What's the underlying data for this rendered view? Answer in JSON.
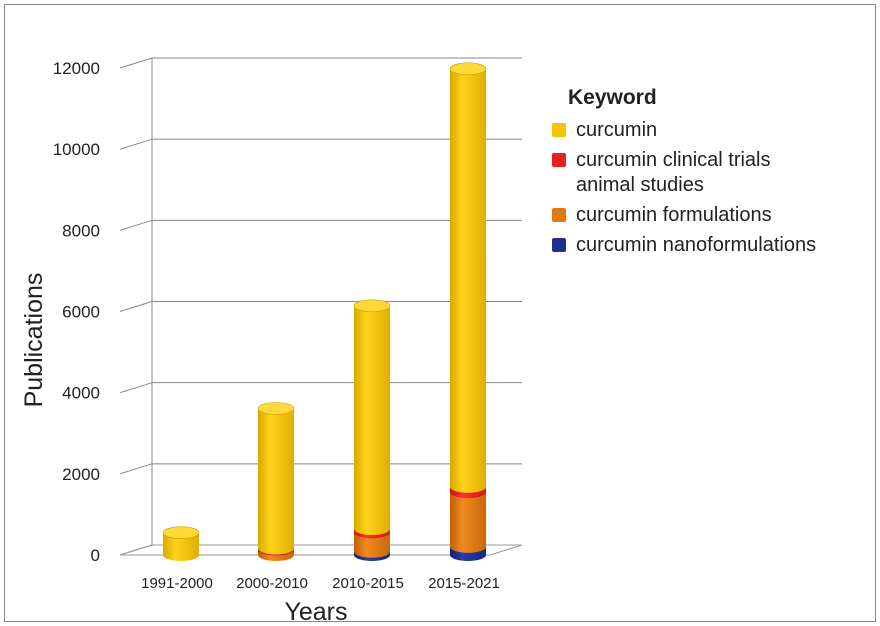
{
  "chart_data": {
    "type": "bar",
    "title": "",
    "xlabel": "Years",
    "ylabel": "Publications",
    "categories": [
      "1991-2000",
      "2000-2010",
      "2010-2015",
      "2015-2021"
    ],
    "ylim": [
      0,
      12000
    ],
    "yticks": [
      "0",
      "2000",
      "4000",
      "6000",
      "8000",
      "10000",
      "12000"
    ],
    "stacked": true,
    "grid": true,
    "legend_title": "Keyword",
    "legend_position": "right",
    "series": [
      {
        "name": "curcumin nanoformulations",
        "color": "#1f2f8f",
        "values": [
          0,
          0,
          80,
          200
        ]
      },
      {
        "name": "curcumin formulations",
        "color": "#e07a10",
        "values": [
          0,
          130,
          480,
          1350
        ]
      },
      {
        "name": "curcumin clinical trials animal studies",
        "color": "#e62020",
        "values": [
          0,
          30,
          80,
          130
        ]
      },
      {
        "name": "curcumin",
        "color": "#f5c400",
        "values": [
          550,
          3450,
          5500,
          10300
        ]
      }
    ],
    "legend": [
      {
        "label": "curcumin",
        "color": "#f5c400"
      },
      {
        "label": "curcumin clinical trials\nanimal studies",
        "color": "#e62020"
      },
      {
        "label": "curcumin formulations",
        "color": "#e07a10"
      },
      {
        "label": "curcumin nanoformulations",
        "color": "#1f2f8f"
      }
    ]
  }
}
